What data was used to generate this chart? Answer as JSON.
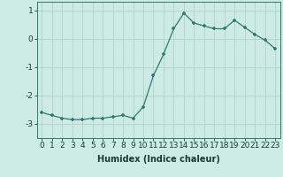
{
  "x": [
    0,
    1,
    2,
    3,
    4,
    5,
    6,
    7,
    8,
    9,
    10,
    11,
    12,
    13,
    14,
    15,
    16,
    17,
    18,
    19,
    20,
    21,
    22,
    23
  ],
  "y": [
    -2.6,
    -2.7,
    -2.8,
    -2.85,
    -2.85,
    -2.8,
    -2.8,
    -2.75,
    -2.7,
    -2.8,
    -2.4,
    -1.3,
    -0.55,
    0.35,
    0.9,
    0.55,
    0.45,
    0.35,
    0.35,
    0.65,
    0.4,
    0.15,
    -0.05,
    -0.35
  ],
  "xlabel": "Humidex (Indice chaleur)",
  "ylim": [
    -3.5,
    1.3
  ],
  "xlim": [
    -0.5,
    23.5
  ],
  "bg_color": "#ceeae4",
  "grid_color": "#aed4cc",
  "line_color": "#2d7a6e",
  "marker_color": "#2d7a6e",
  "tick_labels": [
    "0",
    "1",
    "2",
    "3",
    "4",
    "5",
    "6",
    "7",
    "8",
    "9",
    "10",
    "11",
    "12",
    "13",
    "14",
    "15",
    "16",
    "17",
    "18",
    "19",
    "20",
    "21",
    "22",
    "23"
  ],
  "yticks": [
    -3,
    -2,
    -1,
    0,
    1
  ],
  "ytick_labels": [
    "-3",
    "-2",
    "-1",
    "0",
    "1"
  ],
  "label_fontsize": 7,
  "tick_fontsize": 6.5
}
